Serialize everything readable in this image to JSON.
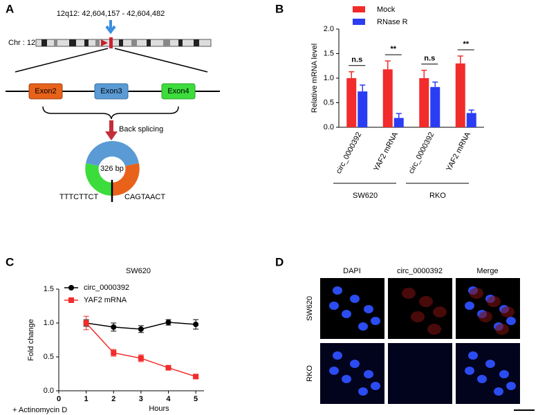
{
  "panel_labels": [
    "A",
    "B",
    "C",
    "D"
  ],
  "diagram": {
    "locus": "12q12: 42,604,157 - 42,604,482",
    "chromosome": "Chr : 12",
    "exons": [
      "Exon2",
      "Exon3",
      "Exon4"
    ],
    "splicing": "Back splicing",
    "size": "326 bp",
    "left_sequence": "TTTCTTCT",
    "right_sequence": "CAGTAACT"
  },
  "chart_data": [
    {
      "type": "bar",
      "ylabel": "Relative mRNA level",
      "categories": [
        "circ_0000392",
        "YAF2 mRNA",
        "circ_0000392",
        "YAF2 mRNA"
      ],
      "groups": [
        "SW620",
        "RKO"
      ],
      "series": [
        {
          "name": "Mock",
          "color": "#f22b2b",
          "values": [
            1.0,
            1.18,
            1.0,
            1.3
          ],
          "errors": [
            0.13,
            0.17,
            0.16,
            0.15
          ]
        },
        {
          "name": "RNase R",
          "color": "#2b3df2",
          "values": [
            0.73,
            0.19,
            0.82,
            0.29
          ],
          "errors": [
            0.13,
            0.09,
            0.1,
            0.06
          ]
        }
      ],
      "significance": [
        "n.s",
        "**",
        "n.s",
        "**"
      ],
      "ylim": [
        0,
        2
      ],
      "yticks": [
        {
          "value": 0,
          "label": "0.0"
        },
        0.5,
        {
          "value": 1,
          "label": "1.0"
        },
        1.5,
        {
          "value": 2,
          "label": "2.0"
        }
      ]
    },
    {
      "type": "line",
      "title": "SW620",
      "xlabel": "Hours",
      "ylabel": "Fold change",
      "annotation": "+ Actinomycin D",
      "x": [
        1,
        2,
        3,
        4,
        5
      ],
      "series": [
        {
          "name": "circ_0000392",
          "color": "#000000",
          "marker": "circle",
          "values": [
            1.0,
            0.94,
            0.91,
            1.01,
            0.98
          ],
          "errors": [
            0.05,
            0.06,
            0.05,
            0.04,
            0.07
          ]
        },
        {
          "name": "YAF2 mRNA",
          "color": "#f22b2b",
          "marker": "square",
          "values": [
            1.0,
            0.56,
            0.48,
            0.34,
            0.21
          ],
          "errors": [
            0.1,
            0.05,
            0.05,
            0.02,
            0.03
          ]
        }
      ],
      "xlim": [
        0,
        5.3
      ],
      "xticks": [
        0,
        1,
        2,
        3,
        4,
        5
      ],
      "ylim": [
        0,
        1.5
      ],
      "yticks": [
        {
          "value": 0,
          "label": "0.0"
        },
        0.5,
        {
          "value": 1,
          "label": "1.0"
        },
        1.5
      ],
      "legend": "upper left"
    }
  ],
  "images": {
    "columns": [
      "DAPI",
      "circ_0000392",
      "Merge"
    ],
    "rows": [
      "SW620",
      "RKO"
    ]
  }
}
